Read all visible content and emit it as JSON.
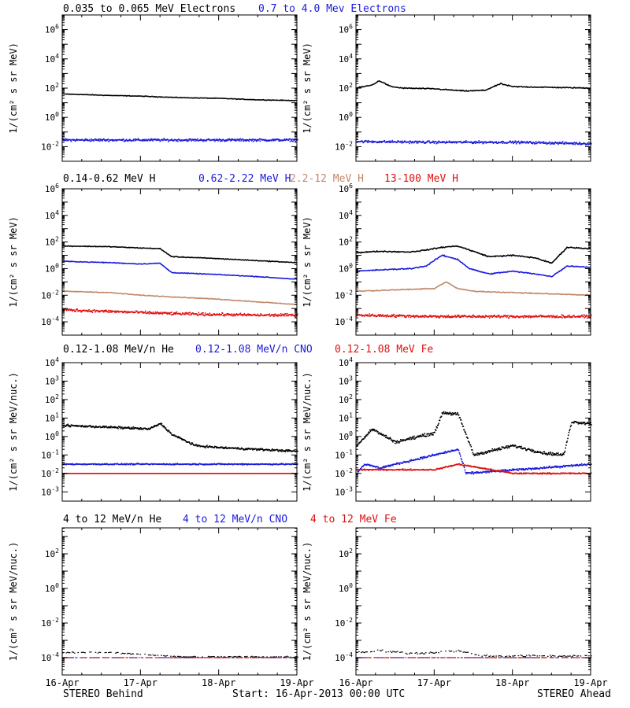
{
  "colors": {
    "black": "#000000",
    "blue": "#1a1adc",
    "tan": "#c08868",
    "red": "#e01010"
  },
  "footer": {
    "left": "STEREO Behind",
    "center": "Start: 16-Apr-2013 00:00 UTC",
    "right": "STEREO Ahead"
  },
  "rows": [
    {
      "legend": [
        {
          "text": "0.035 to 0.065 MeV Electrons",
          "color": "black"
        },
        {
          "text": "0.7 to 4.0 Mev Electrons",
          "color": "blue"
        }
      ]
    },
    {
      "legend": [
        {
          "text": "0.14-0.62 MeV H",
          "color": "black"
        },
        {
          "text": "0.62-2.22 MeV H",
          "color": "blue"
        },
        {
          "text": "2.2-12 MeV H",
          "color": "tan"
        },
        {
          "text": "13-100 MeV H",
          "color": "red"
        }
      ]
    },
    {
      "legend": [
        {
          "text": "0.12-1.08 MeV/n He",
          "color": "black"
        },
        {
          "text": "0.12-1.08 MeV/n CNO",
          "color": "blue"
        },
        {
          "text": "0.12-1.08 MeV Fe",
          "color": "red"
        }
      ]
    },
    {
      "legend": [
        {
          "text": "4 to 12 MeV/n He",
          "color": "black"
        },
        {
          "text": "4 to 12 MeV/n CNO",
          "color": "blue"
        },
        {
          "text": "4 to 12 MeV Fe",
          "color": "red"
        }
      ]
    }
  ],
  "chart_data": [
    {
      "type": "scatter",
      "panel": "row1-behind",
      "ylabel": "1/(cm² s sr MeV)",
      "yscale": "log",
      "ylim_log10": [
        -3,
        7
      ],
      "yticks": [
        -2,
        0,
        2,
        4,
        6
      ],
      "xlim_days": [
        0,
        3
      ],
      "xticks": [
        "16-Apr",
        "17-Apr",
        "18-Apr",
        "19-Apr"
      ],
      "show_xticks": false,
      "series": [
        {
          "color": "black",
          "style": "line",
          "noise": 0.03,
          "x": [
            0,
            0.3,
            0.6,
            1.0,
            1.5,
            2.0,
            2.5,
            3.0
          ],
          "log10y": [
            1.6,
            1.55,
            1.5,
            1.45,
            1.35,
            1.3,
            1.2,
            1.15
          ]
        },
        {
          "color": "blue",
          "style": "dots",
          "noise": 0.12,
          "x": [
            0,
            1.0,
            2.0,
            3.0
          ],
          "log10y": [
            -1.55,
            -1.55,
            -1.55,
            -1.55
          ]
        }
      ]
    },
    {
      "type": "scatter",
      "panel": "row1-ahead",
      "ylabel": "1/(cm² s sr MeV)",
      "yscale": "log",
      "ylim_log10": [
        -3,
        7
      ],
      "yticks": [
        -2,
        0,
        2,
        4,
        6
      ],
      "xlim_days": [
        0,
        3
      ],
      "xticks": [
        "16-Apr",
        "17-Apr",
        "18-Apr",
        "19-Apr"
      ],
      "show_xticks": false,
      "series": [
        {
          "color": "black",
          "style": "line",
          "noise": 0.05,
          "x": [
            0,
            0.2,
            0.3,
            0.45,
            0.6,
            1.0,
            1.4,
            1.65,
            1.85,
            2.0,
            2.5,
            3.0
          ],
          "log10y": [
            2.0,
            2.2,
            2.5,
            2.1,
            2.0,
            1.95,
            1.8,
            1.85,
            2.3,
            2.1,
            2.05,
            2.0
          ]
        },
        {
          "color": "blue",
          "style": "dots",
          "noise": 0.12,
          "x": [
            0,
            1.0,
            2.0,
            3.0
          ],
          "log10y": [
            -1.65,
            -1.7,
            -1.7,
            -1.8
          ]
        }
      ]
    },
    {
      "type": "scatter",
      "panel": "row2-behind",
      "ylabel": "1/(cm² s sr MeV)",
      "yscale": "log",
      "ylim_log10": [
        -5,
        6
      ],
      "yticks": [
        -4,
        -2,
        0,
        2,
        4,
        6
      ],
      "xlim_days": [
        0,
        3
      ],
      "xticks": [
        "16-Apr",
        "17-Apr",
        "18-Apr",
        "19-Apr"
      ],
      "show_xticks": false,
      "series": [
        {
          "color": "black",
          "style": "line",
          "noise": 0.04,
          "x": [
            0,
            0.6,
            1.0,
            1.25,
            1.4,
            1.6,
            2.0,
            2.5,
            3.0
          ],
          "log10y": [
            1.7,
            1.65,
            1.55,
            1.5,
            0.9,
            0.85,
            0.75,
            0.6,
            0.45
          ]
        },
        {
          "color": "blue",
          "style": "line",
          "noise": 0.04,
          "x": [
            0,
            0.6,
            1.0,
            1.25,
            1.4,
            1.6,
            2.0,
            2.5,
            3.0
          ],
          "log10y": [
            0.55,
            0.45,
            0.35,
            0.4,
            -0.3,
            -0.35,
            -0.45,
            -0.6,
            -0.8
          ]
        },
        {
          "color": "tan",
          "style": "line",
          "noise": 0.04,
          "x": [
            0,
            0.6,
            1.0,
            1.5,
            2.0,
            2.5,
            3.0
          ],
          "log10y": [
            -1.7,
            -1.8,
            -2.0,
            -2.15,
            -2.3,
            -2.5,
            -2.7
          ]
        },
        {
          "color": "red",
          "style": "dots",
          "noise": 0.15,
          "x": [
            0,
            0.5,
            1.0,
            1.5,
            2.0,
            2.5,
            3.0
          ],
          "log10y": [
            -3.1,
            -3.2,
            -3.3,
            -3.4,
            -3.45,
            -3.5,
            -3.5
          ]
        }
      ]
    },
    {
      "type": "scatter",
      "panel": "row2-ahead",
      "ylabel": "1/(cm² s sr MeV)",
      "yscale": "log",
      "ylim_log10": [
        -5,
        6
      ],
      "yticks": [
        -4,
        -2,
        0,
        2,
        4,
        6
      ],
      "xlim_days": [
        0,
        3
      ],
      "xticks": [
        "16-Apr",
        "17-Apr",
        "18-Apr",
        "19-Apr"
      ],
      "show_xticks": false,
      "series": [
        {
          "color": "black",
          "style": "line",
          "noise": 0.06,
          "x": [
            0,
            0.3,
            0.7,
            0.9,
            1.1,
            1.3,
            1.45,
            1.7,
            2.0,
            2.3,
            2.5,
            2.7,
            3.0
          ],
          "log10y": [
            1.2,
            1.3,
            1.25,
            1.4,
            1.6,
            1.7,
            1.4,
            0.9,
            1.0,
            0.8,
            0.4,
            1.6,
            1.5
          ]
        },
        {
          "color": "blue",
          "style": "line",
          "noise": 0.06,
          "x": [
            0,
            0.3,
            0.7,
            0.9,
            1.1,
            1.3,
            1.45,
            1.7,
            2.0,
            2.3,
            2.5,
            2.7,
            3.0
          ],
          "log10y": [
            -0.2,
            -0.1,
            0.0,
            0.2,
            1.0,
            0.7,
            0.0,
            -0.4,
            -0.2,
            -0.4,
            -0.6,
            0.2,
            0.1
          ]
        },
        {
          "color": "tan",
          "style": "line",
          "noise": 0.05,
          "x": [
            0,
            0.5,
            1.0,
            1.15,
            1.3,
            1.5,
            2.0,
            2.5,
            3.0
          ],
          "log10y": [
            -1.7,
            -1.6,
            -1.5,
            -1.0,
            -1.5,
            -1.7,
            -1.8,
            -1.9,
            -2.0
          ]
        },
        {
          "color": "red",
          "style": "dots",
          "noise": 0.15,
          "x": [
            0,
            1.0,
            2.0,
            3.0
          ],
          "log10y": [
            -3.5,
            -3.6,
            -3.6,
            -3.6
          ]
        }
      ]
    },
    {
      "type": "scatter",
      "panel": "row3-behind",
      "ylabel": "1/(cm² s sr MeV/nuc.)",
      "yscale": "log",
      "ylim_log10": [
        -3.5,
        4
      ],
      "yticks": [
        -3,
        -2,
        -1,
        0,
        1,
        2,
        3,
        4
      ],
      "xlim_days": [
        0,
        3
      ],
      "xticks": [
        "16-Apr",
        "17-Apr",
        "18-Apr",
        "19-Apr"
      ],
      "show_xticks": false,
      "series": [
        {
          "color": "black",
          "style": "dots",
          "noise": 0.08,
          "x": [
            0,
            0.3,
            0.6,
            0.9,
            1.1,
            1.25,
            1.4,
            1.7,
            2.0,
            2.5,
            3.0
          ],
          "log10y": [
            0.6,
            0.55,
            0.5,
            0.45,
            0.4,
            0.7,
            0.1,
            -0.5,
            -0.6,
            -0.7,
            -0.8
          ]
        },
        {
          "color": "blue",
          "style": "dots",
          "noise": 0.05,
          "x": [
            0,
            1.0,
            2.0,
            3.0
          ],
          "log10y": [
            -1.5,
            -1.5,
            -1.5,
            -1.5
          ]
        },
        {
          "color": "red",
          "style": "dots",
          "noise": 0.0,
          "x": [
            0,
            1.0,
            2.0,
            3.0
          ],
          "log10y": [
            -2.0,
            -2.0,
            -2.0,
            -2.0
          ]
        }
      ]
    },
    {
      "type": "scatter",
      "panel": "row3-ahead",
      "ylabel": "1/(cm² s sr MeV/nuc.)",
      "yscale": "log",
      "ylim_log10": [
        -3.5,
        4
      ],
      "yticks": [
        -3,
        -2,
        -1,
        0,
        1,
        2,
        3,
        4
      ],
      "xlim_days": [
        0,
        3
      ],
      "xticks": [
        "16-Apr",
        "17-Apr",
        "18-Apr",
        "19-Apr"
      ],
      "show_xticks": false,
      "series": [
        {
          "color": "black",
          "style": "dots",
          "noise": 0.12,
          "x": [
            0,
            0.2,
            0.5,
            0.8,
            1.0,
            1.1,
            1.3,
            1.5,
            1.7,
            2.0,
            2.4,
            2.65,
            2.75,
            3.0
          ],
          "log10y": [
            -0.5,
            0.4,
            -0.3,
            0.0,
            0.2,
            1.3,
            1.2,
            -1.0,
            -0.8,
            -0.5,
            -0.9,
            -1.0,
            0.8,
            0.7
          ]
        },
        {
          "color": "blue",
          "style": "dots",
          "noise": 0.08,
          "x": [
            0,
            0.1,
            0.3,
            1.1,
            1.3,
            1.4,
            2.7,
            3.0
          ],
          "log10y": [
            -2.0,
            -1.5,
            -1.7,
            -0.9,
            -0.7,
            -2.0,
            -1.6,
            -1.5
          ]
        },
        {
          "color": "red",
          "style": "dots",
          "noise": 0.05,
          "x": [
            0,
            1.0,
            1.3,
            2.0,
            3.0
          ],
          "log10y": [
            -1.8,
            -1.8,
            -1.5,
            -2.0,
            -2.0
          ]
        }
      ]
    },
    {
      "type": "scatter",
      "panel": "row4-behind",
      "ylabel": "1/(cm² s sr MeV/nuc.)",
      "yscale": "log",
      "ylim_log10": [
        -5,
        3.5
      ],
      "yticks": [
        -4,
        -2,
        0,
        2
      ],
      "xlim_days": [
        0,
        3
      ],
      "xticks": [
        "16-Apr",
        "17-Apr",
        "18-Apr",
        "19-Apr"
      ],
      "show_xticks": true,
      "series": [
        {
          "color": "black",
          "style": "sparse",
          "noise": 0.05,
          "x": [
            0,
            0.5,
            1.0,
            1.5,
            2.0,
            2.5,
            3.0
          ],
          "log10y": [
            -3.7,
            -3.7,
            -3.8,
            -3.95,
            -3.95,
            -3.95,
            -3.95
          ]
        },
        {
          "color": "blue",
          "style": "sparse",
          "noise": 0.0,
          "x": [
            0,
            3.0
          ],
          "log10y": [
            -4.0,
            -4.0
          ]
        },
        {
          "color": "red",
          "style": "sparse",
          "noise": 0.0,
          "x": [
            0,
            3.0
          ],
          "log10y": [
            -4.0,
            -4.0
          ]
        }
      ]
    },
    {
      "type": "scatter",
      "panel": "row4-ahead",
      "ylabel": "1/(cm² s sr MeV/nuc.)",
      "yscale": "log",
      "ylim_log10": [
        -5,
        3.5
      ],
      "yticks": [
        -4,
        -2,
        0,
        2
      ],
      "xlim_days": [
        0,
        3
      ],
      "xticks": [
        "16-Apr",
        "17-Apr",
        "18-Apr",
        "19-Apr"
      ],
      "show_xticks": true,
      "series": [
        {
          "color": "black",
          "style": "sparse",
          "noise": 0.08,
          "x": [
            0,
            0.3,
            0.7,
            1.0,
            1.3,
            1.6,
            2.0,
            2.5,
            3.0
          ],
          "log10y": [
            -3.7,
            -3.6,
            -3.75,
            -3.7,
            -3.6,
            -3.9,
            -3.9,
            -3.9,
            -3.9
          ]
        },
        {
          "color": "blue",
          "style": "sparse",
          "noise": 0.0,
          "x": [
            0,
            3.0
          ],
          "log10y": [
            -4.0,
            -4.0
          ]
        },
        {
          "color": "red",
          "style": "sparse",
          "noise": 0.0,
          "x": [
            0,
            3.0
          ],
          "log10y": [
            -4.0,
            -4.0
          ]
        }
      ]
    }
  ]
}
